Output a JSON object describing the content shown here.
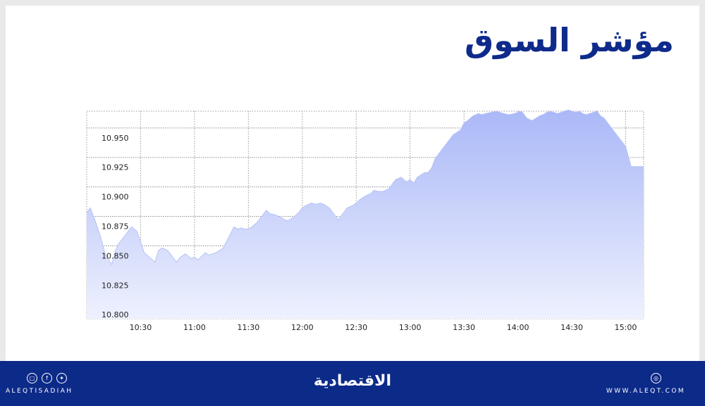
{
  "header": {
    "title": "مؤشر السوق"
  },
  "footer": {
    "brand": "الاقتصادية",
    "left_handle": "ALEQTISADIAH",
    "right_url": "WWW.ALEQT.COM",
    "left_icons": [
      "instagram-icon",
      "facebook-icon",
      "twitter-icon"
    ],
    "right_icons": [
      "web-icon"
    ]
  },
  "colors": {
    "title": "#0e2a8a",
    "footer_bg": "#0c2a88",
    "area_top": "#aab8f7",
    "area_bottom": "#eef1fe"
  },
  "chart_data": {
    "type": "area",
    "x_ticks": [
      "10:30",
      "11:00",
      "11:30",
      "12:00",
      "12:30",
      "13:00",
      "13:30",
      "14:00",
      "14:30",
      "15:00"
    ],
    "y_ticks": [
      "10.950",
      "10.925",
      "10.900",
      "10.875",
      "10.850",
      "10.825",
      "10.800"
    ],
    "ylim": [
      10.79,
      10.966
    ],
    "xlim": [
      "10:00",
      "15:10"
    ],
    "grid": true,
    "series": [
      {
        "x": [
          "10:00",
          "10:02",
          "10:05",
          "10:08",
          "10:10",
          "10:12",
          "10:14",
          "10:16",
          "10:18",
          "10:20",
          "10:22",
          "10:25",
          "10:28",
          "10:30",
          "10:32",
          "10:35",
          "10:38",
          "10:40",
          "10:42",
          "10:45",
          "10:48",
          "10:50",
          "10:52",
          "10:55",
          "10:58",
          "11:00",
          "11:02",
          "11:04",
          "11:06",
          "11:08",
          "11:10",
          "11:12",
          "11:14",
          "11:16",
          "11:18",
          "11:20",
          "11:22",
          "11:24",
          "11:26",
          "11:28",
          "11:30",
          "11:32",
          "11:35",
          "11:38",
          "11:40",
          "11:42",
          "11:45",
          "11:48",
          "11:50",
          "11:52",
          "11:55",
          "11:58",
          "12:00",
          "12:02",
          "12:05",
          "12:08",
          "12:10",
          "12:12",
          "12:15",
          "12:18",
          "12:20",
          "12:22",
          "12:25",
          "12:28",
          "12:30",
          "12:32",
          "12:35",
          "12:38",
          "12:40",
          "12:42",
          "12:45",
          "12:48",
          "12:50",
          "12:52",
          "12:55",
          "12:58",
          "13:00",
          "13:02",
          "13:04",
          "13:06",
          "13:08",
          "13:10",
          "13:12",
          "13:14",
          "13:16",
          "13:18",
          "13:20",
          "13:22",
          "13:24",
          "13:26",
          "13:28",
          "13:30",
          "13:32",
          "13:35",
          "13:38",
          "13:40",
          "13:42",
          "13:45",
          "13:48",
          "13:50",
          "13:52",
          "13:55",
          "13:58",
          "14:00",
          "14:02",
          "14:05",
          "14:08",
          "14:10",
          "14:12",
          "14:14",
          "14:16",
          "14:18",
          "14:20",
          "14:22",
          "14:24",
          "14:26",
          "14:28",
          "14:30",
          "14:32",
          "14:34",
          "14:36",
          "14:38",
          "14:40",
          "14:42",
          "14:44",
          "14:46",
          "14:48",
          "14:50",
          "14:52",
          "14:54",
          "14:56",
          "14:58",
          "15:00",
          "15:01",
          "15:03",
          "15:05",
          "15:10"
        ],
        "y": [
          10.88,
          10.884,
          10.872,
          10.858,
          10.846,
          10.84,
          10.836,
          10.848,
          10.854,
          10.858,
          10.862,
          10.868,
          10.864,
          10.855,
          10.846,
          10.842,
          10.838,
          10.848,
          10.85,
          10.848,
          10.842,
          10.838,
          10.842,
          10.845,
          10.841,
          10.842,
          10.84,
          10.843,
          10.846,
          10.844,
          10.845,
          10.846,
          10.848,
          10.85,
          10.856,
          10.862,
          10.868,
          10.866,
          10.867,
          10.866,
          10.866,
          10.868,
          10.872,
          10.878,
          10.882,
          10.879,
          10.878,
          10.876,
          10.874,
          10.873,
          10.876,
          10.88,
          10.884,
          10.886,
          10.888,
          10.887,
          10.888,
          10.887,
          10.884,
          10.878,
          10.874,
          10.878,
          10.884,
          10.886,
          10.888,
          10.891,
          10.894,
          10.896,
          10.899,
          10.898,
          10.898,
          10.9,
          10.904,
          10.908,
          10.91,
          10.906,
          10.908,
          10.905,
          10.91,
          10.912,
          10.914,
          10.914,
          10.918,
          10.926,
          10.93,
          10.934,
          10.938,
          10.942,
          10.946,
          10.948,
          10.95,
          10.956,
          10.958,
          10.962,
          10.964,
          10.963,
          10.964,
          10.965,
          10.966,
          10.965,
          10.964,
          10.963,
          10.964,
          10.965,
          10.966,
          10.96,
          10.958,
          10.96,
          10.962,
          10.963,
          10.965,
          10.966,
          10.965,
          10.964,
          10.965,
          10.966,
          10.967,
          10.966,
          10.965,
          10.966,
          10.964,
          10.963,
          10.964,
          10.965,
          10.966,
          10.962,
          10.96,
          10.956,
          10.952,
          10.948,
          10.944,
          10.94,
          10.936,
          10.93,
          10.919,
          10.919,
          10.919
        ]
      }
    ]
  }
}
